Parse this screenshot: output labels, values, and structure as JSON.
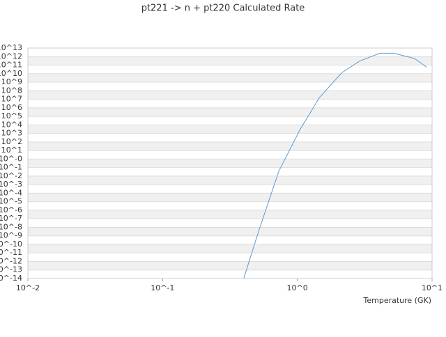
{
  "chart_data": {
    "type": "line",
    "title": "pt221 -> n + pt220 Calculated Rate",
    "x_label": "Temperature (GK)",
    "log_x": true,
    "log_y": true,
    "grid": true,
    "color": "#5b9bd5",
    "xlim": [
      0.01,
      10
    ],
    "ylim": [
      1e-14,
      10000000000000.0
    ],
    "xticks": [
      {
        "value": 0.01,
        "label": "10^-2"
      },
      {
        "value": 0.1,
        "label": "10^-1"
      },
      {
        "value": 1,
        "label": "10^0"
      },
      {
        "value": 10,
        "label": "10^1"
      }
    ],
    "yticks": [
      {
        "value": 10000000000000.0,
        "label": "10^13"
      },
      {
        "value": 1000000000000.0,
        "label": "10^12"
      },
      {
        "value": 100000000000.0,
        "label": "10^11"
      },
      {
        "value": 10000000000.0,
        "label": "10^10"
      },
      {
        "value": 1000000000.0,
        "label": "10^9"
      },
      {
        "value": 100000000.0,
        "label": "10^8"
      },
      {
        "value": 10000000.0,
        "label": "10^7"
      },
      {
        "value": 1000000.0,
        "label": "10^6"
      },
      {
        "value": 100000.0,
        "label": "10^5"
      },
      {
        "value": 10000.0,
        "label": "10^4"
      },
      {
        "value": 1000.0,
        "label": "10^3"
      },
      {
        "value": 100.0,
        "label": "10^2"
      },
      {
        "value": 10,
        "label": "10^1"
      },
      {
        "value": 1,
        "label": "10^-0"
      },
      {
        "value": 0.1,
        "label": "10^-1"
      },
      {
        "value": 0.01,
        "label": "10^-2"
      },
      {
        "value": 0.001,
        "label": "10^-3"
      },
      {
        "value": 0.0001,
        "label": "10^-4"
      },
      {
        "value": 1e-05,
        "label": "10^-5"
      },
      {
        "value": 1e-06,
        "label": "10^-6"
      },
      {
        "value": 1e-07,
        "label": "10^-7"
      },
      {
        "value": 1e-08,
        "label": "10^-8"
      },
      {
        "value": 1e-09,
        "label": "10^-9"
      },
      {
        "value": 1e-10,
        "label": "10^-10"
      },
      {
        "value": 1e-11,
        "label": "10^-11"
      },
      {
        "value": 1e-12,
        "label": "10^-12"
      },
      {
        "value": 1e-13,
        "label": "10^-13"
      },
      {
        "value": 1e-14,
        "label": "10^-14"
      }
    ],
    "x": [
      0.4,
      0.52,
      0.73,
      1.05,
      1.46,
      2.14,
      2.9,
      4.1,
      5.2,
      7.4,
      9.1
    ],
    "values": [
      1e-14,
      5e-09,
      0.04,
      3000,
      16000000.0,
      13000000000.0,
      300000000000.0,
      2500000000000.0,
      2500000000000.0,
      600000000000.0,
      60000000000.0
    ]
  }
}
